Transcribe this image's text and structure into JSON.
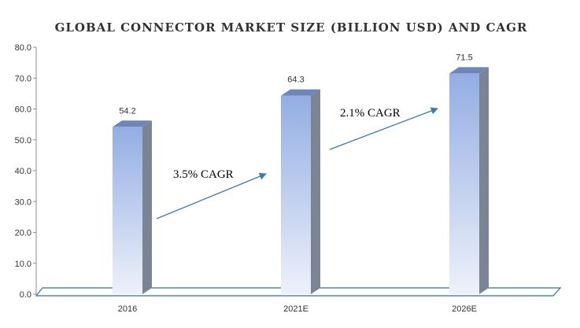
{
  "chart_data": {
    "type": "bar",
    "title": "GLOBAL CONNECTOR MARKET SIZE (BILLION USD) AND CAGR",
    "categories": [
      "2016",
      "2021E",
      "2026E"
    ],
    "values": [
      54.2,
      64.3,
      71.5
    ],
    "data_labels": [
      "54.2",
      "64.3",
      "71.5"
    ],
    "ylim": [
      0,
      80
    ],
    "y_ticks": [
      "0.0",
      "10.0",
      "20.0",
      "30.0",
      "40.0",
      "50.0",
      "60.0",
      "70.0",
      "80.0"
    ],
    "xlabel": "",
    "ylabel": "",
    "grid": false,
    "legend": "none",
    "annotations": [
      {
        "text": "3.5% CAGR",
        "from": "2016",
        "to": "2021E"
      },
      {
        "text": "2.1% CAGR",
        "from": "2021E",
        "to": "2026E"
      }
    ],
    "colors": {
      "bar_top": "#93ADE3",
      "bar_bottom": "#EDF1FA",
      "bar_side": "#7A8494",
      "bar_cap": "#6E86BA",
      "arrow": "#3A78B8",
      "floor": "#2E6FB0"
    }
  }
}
